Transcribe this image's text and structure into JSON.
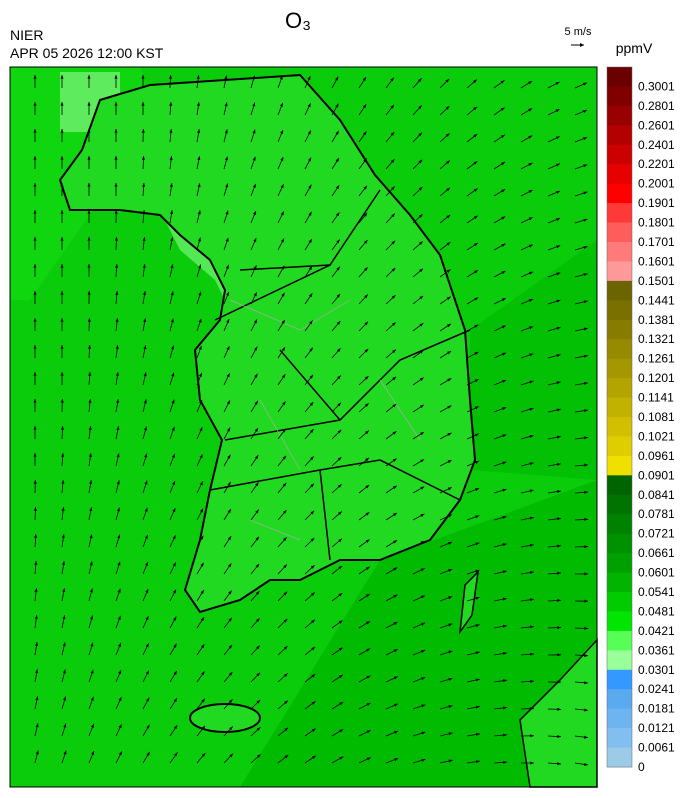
{
  "header": {
    "title": "O₃",
    "source": "NIER",
    "datetime": "APR 05 2026 12:00 KST",
    "wind_scale": "5 m/s"
  },
  "colorbar": {
    "unit": "ppmV",
    "levels": [
      {
        "label": "0.3001",
        "color": "#6b0000"
      },
      {
        "label": "0.2801",
        "color": "#800000"
      },
      {
        "label": "0.2601",
        "color": "#990000"
      },
      {
        "label": "0.2401",
        "color": "#b30000"
      },
      {
        "label": "0.2201",
        "color": "#cc0000"
      },
      {
        "label": "0.2001",
        "color": "#e60000"
      },
      {
        "label": "0.1901",
        "color": "#ff0000"
      },
      {
        "label": "0.1801",
        "color": "#ff3838"
      },
      {
        "label": "0.1701",
        "color": "#ff5c5c"
      },
      {
        "label": "0.1601",
        "color": "#ff7a7a"
      },
      {
        "label": "0.1501",
        "color": "#ff9999"
      },
      {
        "label": "0.1441",
        "color": "#6b6400"
      },
      {
        "label": "0.1381",
        "color": "#7a7000"
      },
      {
        "label": "0.1321",
        "color": "#877c00"
      },
      {
        "label": "0.1261",
        "color": "#968a00"
      },
      {
        "label": "0.1201",
        "color": "#a59700"
      },
      {
        "label": "0.1141",
        "color": "#b3a400"
      },
      {
        "label": "0.1081",
        "color": "#c2b200"
      },
      {
        "label": "0.1021",
        "color": "#d2c000"
      },
      {
        "label": "0.0961",
        "color": "#e0cd00"
      },
      {
        "label": "0.0901",
        "color": "#f0e000"
      },
      {
        "label": "0.0841",
        "color": "#006400"
      },
      {
        "label": "0.0781",
        "color": "#007300"
      },
      {
        "label": "0.0721",
        "color": "#008200"
      },
      {
        "label": "0.0661",
        "color": "#009100"
      },
      {
        "label": "0.0601",
        "color": "#00a000"
      },
      {
        "label": "0.0541",
        "color": "#00b400"
      },
      {
        "label": "0.0481",
        "color": "#00cc00"
      },
      {
        "label": "0.0421",
        "color": "#00e600"
      },
      {
        "label": "0.0361",
        "color": "#55ff55"
      },
      {
        "label": "0.0301",
        "color": "#99ff99"
      },
      {
        "label": "0.0241",
        "color": "#3399ff"
      },
      {
        "label": "0.0181",
        "color": "#5aaaf0"
      },
      {
        "label": "0.0121",
        "color": "#6eb4f0"
      },
      {
        "label": "0.0061",
        "color": "#82bef0"
      },
      {
        "label": "0",
        "color": "#9ccbe8"
      }
    ]
  }
}
